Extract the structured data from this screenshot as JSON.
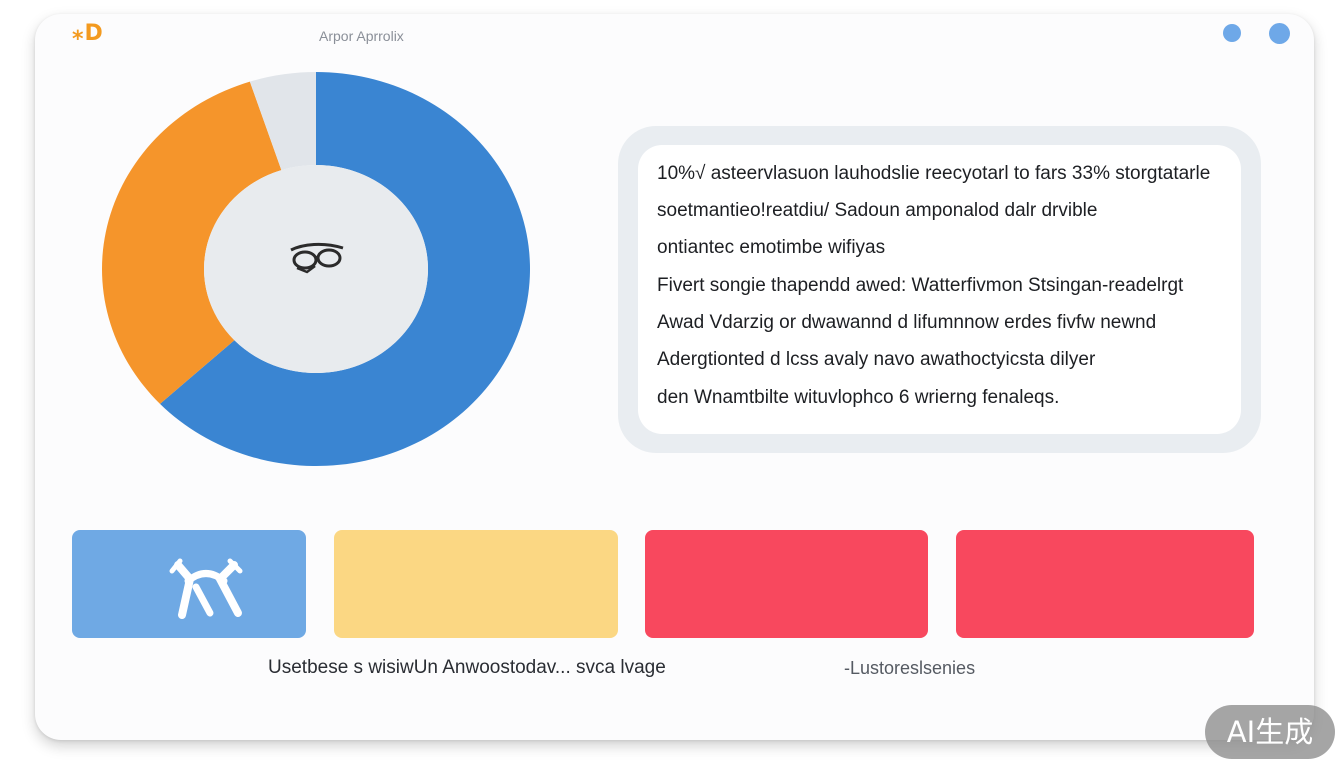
{
  "header": {
    "logo_text": "⁎D",
    "app_title": "Arpor Aprrolix",
    "icon_left": "globe-icon",
    "icon_right": "avatar-icon"
  },
  "chart_data": {
    "type": "pie",
    "variant": "donut",
    "slices": [
      {
        "value": 63,
        "color": "#3a85d2"
      },
      {
        "value": 32,
        "color": "#f5952b"
      },
      {
        "value": 5,
        "color": "#e1e5ea"
      }
    ],
    "center_icon": "glasses-icon"
  },
  "info_panel": {
    "lines": [
      "10%√ asteervlasuon lauhodslie reecyotarl to fars 33% storgtatarle",
      "soetmantieo!reatdiu/ Sadoun amponalod dalr dr\u0012vible",
      "ontiantec emotimbe wifiyas",
      "Fivert songie thapendd awed: Watterfivmon\u0012 Stsingan-readelrgt",
      "Awad Vdarzig or dwawannd d lifumnnow erdes fivfw newnd",
      "Adergtionted d lcss avaly navo awathoctyicsta dilyer",
      "den Wnamtbilte wituvlophco 6 wrierng fenaleqs."
    ]
  },
  "tiles": [
    {
      "color": "#6fa9e4",
      "icon": "tools-icon"
    },
    {
      "color": "#fbd783"
    },
    {
      "color": "#f8485e"
    },
    {
      "color": "#f8485e"
    }
  ],
  "captions": {
    "left": "Usetbese s wisiwUn Anwoostodav... svca lvage",
    "right": "-Lustoreslsenies"
  },
  "watermark": "AI生成"
}
